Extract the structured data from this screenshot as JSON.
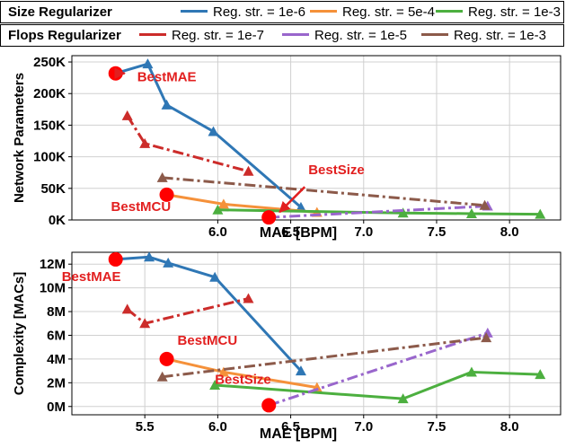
{
  "legend": {
    "rows": [
      {
        "title": "Size Regularizer",
        "items": [
          {
            "label": "Reg. str. = 1e-6",
            "color": "#2f77b5",
            "dash": "solid"
          },
          {
            "label": "Reg. str. = 5e-4",
            "color": "#f5913a",
            "dash": "solid"
          },
          {
            "label": "Reg. str. = 1e-3",
            "color": "#4caf3f",
            "dash": "solid"
          }
        ]
      },
      {
        "title": "Flops Regularizer",
        "items": [
          {
            "label": "Reg. str. = 1e-7",
            "color": "#cc2c2a",
            "dash": "solid"
          },
          {
            "label": "Reg. str. = 1e-5",
            "color": "#9966cc",
            "dash": "solid"
          },
          {
            "label": "Reg. str. = 1e-3",
            "color": "#8c5a4a",
            "dash": "solid"
          }
        ]
      }
    ]
  },
  "chart_data": [
    {
      "type": "line",
      "xlabel": "MAE [BPM]",
      "ylabel": "Network Parameters",
      "xlim": [
        5.0,
        8.35
      ],
      "ylim": [
        0,
        260000
      ],
      "xticks": [
        6.0,
        6.5,
        7.0,
        7.5,
        8.0
      ],
      "xtick_labels": [
        "6.0",
        "6.5",
        "7.0",
        "7.5",
        "8.0"
      ],
      "yticks": [
        0,
        50000,
        100000,
        150000,
        200000,
        250000
      ],
      "ytick_labels": [
        "0K",
        "50K",
        "100K",
        "150K",
        "200K",
        "250K"
      ],
      "grid": true,
      "series": [
        {
          "name": "Size Reg. str. = 1e-6",
          "color": "#2f77b5",
          "dash": "solid",
          "x": [
            5.3,
            5.52,
            5.65,
            5.97,
            6.57
          ],
          "y": [
            232000,
            247000,
            182000,
            140000,
            20000
          ]
        },
        {
          "name": "Size Reg. str. = 5e-4",
          "color": "#f5913a",
          "dash": "solid",
          "x": [
            5.65,
            6.04,
            6.68
          ],
          "y": [
            40000,
            25000,
            12000
          ]
        },
        {
          "name": "Size Reg. str. = 1e-3",
          "color": "#4caf3f",
          "dash": "solid",
          "x": [
            6.0,
            7.27,
            7.74,
            8.21
          ],
          "y": [
            16000,
            11000,
            10000,
            9000
          ]
        },
        {
          "name": "Flops Reg. str. = 1e-7",
          "color": "#cc2c2a",
          "dash": "dashdot",
          "x": [
            5.38,
            5.5,
            6.21
          ],
          "y": [
            165000,
            121000,
            77000
          ]
        },
        {
          "name": "Flops Reg. str. = 1e-5",
          "color": "#9966cc",
          "dash": "dashdot",
          "x": [
            6.35,
            7.85
          ],
          "y": [
            4000,
            22000
          ]
        },
        {
          "name": "Flops Reg. str. = 1e-3",
          "color": "#8c5a4a",
          "dash": "dashdot",
          "x": [
            5.62,
            7.83
          ],
          "y": [
            67000,
            23000
          ]
        }
      ],
      "highlights": [
        {
          "label": "BestMAE",
          "x": 5.3,
          "y": 232000
        },
        {
          "label": "BestMCU",
          "x": 5.65,
          "y": 40000
        },
        {
          "label": "BestSize",
          "x": 6.35,
          "y": 4000
        }
      ]
    },
    {
      "type": "line",
      "xlabel": "MAE [BPM]",
      "ylabel": "Complexity [MACs]",
      "xlim": [
        5.0,
        8.35
      ],
      "ylim": [
        -700000,
        13000000
      ],
      "xticks": [
        5.5,
        6.0,
        6.5,
        7.0,
        7.5,
        8.0
      ],
      "xtick_labels": [
        "5.5",
        "6.0",
        "6.5",
        "7.0",
        "7.5",
        "8.0"
      ],
      "yticks": [
        0,
        2000000,
        4000000,
        6000000,
        8000000,
        10000000,
        12000000
      ],
      "ytick_labels": [
        "0M",
        "2M",
        "4M",
        "6M",
        "8M",
        "10M",
        "12M"
      ],
      "grid": true,
      "series": [
        {
          "name": "Size Reg. str. = 1e-6",
          "color": "#2f77b5",
          "dash": "solid",
          "x": [
            5.3,
            5.53,
            5.66,
            5.98,
            6.57
          ],
          "y": [
            12400000,
            12600000,
            12100000,
            10900000,
            3000000
          ]
        },
        {
          "name": "Size Reg. str. = 5e-4",
          "color": "#f5913a",
          "dash": "solid",
          "x": [
            5.65,
            6.04,
            6.68
          ],
          "y": [
            4000000,
            2900000,
            1600000
          ]
        },
        {
          "name": "Size Reg. str. = 1e-3",
          "color": "#4caf3f",
          "dash": "solid",
          "x": [
            5.98,
            7.27,
            7.74,
            8.21
          ],
          "y": [
            1800000,
            650000,
            2900000,
            2700000
          ]
        },
        {
          "name": "Flops Reg. str. = 1e-7",
          "color": "#cc2c2a",
          "dash": "dashdot",
          "x": [
            5.38,
            5.5,
            6.21
          ],
          "y": [
            8200000,
            7000000,
            9100000
          ]
        },
        {
          "name": "Flops Reg. str. = 1e-5",
          "color": "#9966cc",
          "dash": "dashdot",
          "x": [
            6.35,
            7.85
          ],
          "y": [
            100000,
            6200000
          ]
        },
        {
          "name": "Flops Reg. str. = 1e-3",
          "color": "#8c5a4a",
          "dash": "dashdot",
          "x": [
            5.62,
            7.84
          ],
          "y": [
            2500000,
            5800000
          ]
        }
      ],
      "highlights": [
        {
          "label": "BestMAE",
          "x": 5.3,
          "y": 12400000
        },
        {
          "label": "BestMCU",
          "x": 5.65,
          "y": 4000000
        },
        {
          "label": "BestSize",
          "x": 6.35,
          "y": 100000
        }
      ]
    }
  ]
}
